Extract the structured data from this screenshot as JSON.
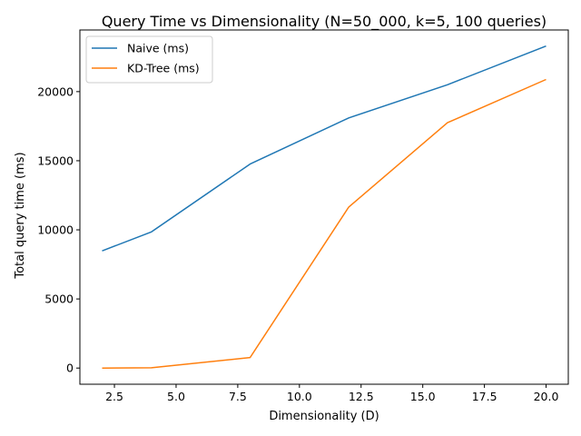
{
  "chart_data": {
    "type": "line",
    "title": "Query Time vs Dimensionality (N=50_000, k=5, 100 queries)",
    "xlabel": "Dimensionality (D)",
    "ylabel": "Total query time (ms)",
    "xlim": [
      1.1,
      20.9
    ],
    "ylim": [
      -1170,
      24460
    ],
    "xticks": [
      2.5,
      5.0,
      7.5,
      10.0,
      12.5,
      15.0,
      17.5,
      20.0
    ],
    "xtick_labels": [
      "2.5",
      "5.0",
      "7.5",
      "10.0",
      "12.5",
      "15.0",
      "17.5",
      "20.0"
    ],
    "yticks": [
      0,
      5000,
      10000,
      15000,
      20000
    ],
    "ytick_labels": [
      "0",
      "5000",
      "10000",
      "15000",
      "20000"
    ],
    "grid": false,
    "legend_position": "top-left",
    "x": [
      2,
      4,
      8,
      12,
      16,
      20
    ],
    "series": [
      {
        "name": "Naive (ms)",
        "color": "#1f77b4",
        "values": [
          8480,
          9850,
          14760,
          18100,
          20500,
          23300
        ]
      },
      {
        "name": "KD-Tree (ms)",
        "color": "#ff7f0e",
        "values": [
          0,
          20,
          760,
          11650,
          17750,
          20880
        ]
      }
    ]
  }
}
